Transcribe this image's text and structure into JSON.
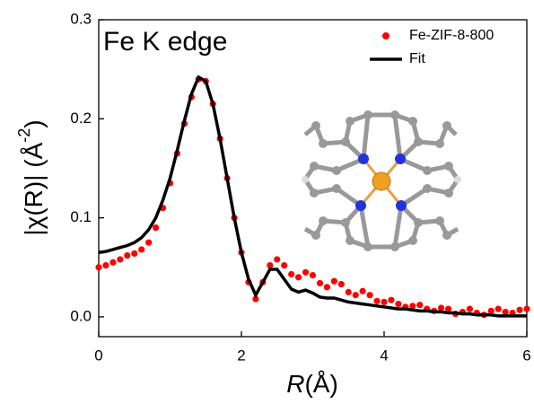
{
  "chart_data": {
    "type": "line",
    "annotation": "Fe K edge",
    "xlabel_italic": "R",
    "xlabel": "(Å)",
    "ylabel": "|χ(R)| (Å",
    "ylabel_sup": "-2",
    "ylabel_end": ")",
    "xlim": [
      0,
      6
    ],
    "ylim": [
      -0.02,
      0.3
    ],
    "xticks": [
      0,
      2,
      4,
      6
    ],
    "yticks": [
      {
        "value": 0,
        "label": "0.0"
      },
      0.1,
      0.2,
      0.3
    ],
    "legend": "upper right",
    "x": [
      0,
      0.1,
      0.2,
      0.3,
      0.4,
      0.5,
      0.6,
      0.7,
      0.8,
      0.9,
      1,
      1.1,
      1.2,
      1.3,
      1.4,
      1.5,
      1.6,
      1.7,
      1.8,
      1.9,
      2,
      2.1,
      2.2,
      2.3,
      2.4,
      2.5,
      2.6,
      2.7,
      2.8,
      2.9,
      3,
      3.1,
      3.2,
      3.3,
      3.4,
      3.5,
      3.6,
      3.7,
      3.8,
      3.9,
      4,
      4.1,
      4.2,
      4.3,
      4.4,
      4.5,
      4.6,
      4.7,
      4.8,
      4.9,
      5,
      5.1,
      5.2,
      5.3,
      5.4,
      5.5,
      5.6,
      5.7,
      5.8,
      5.9,
      6
    ],
    "series": [
      {
        "name": "Fe-ZIF-8-800",
        "type": "scatter",
        "color": "#ff0000",
        "values": [
          0.05,
          0.052,
          0.055,
          0.058,
          0.062,
          0.064,
          0.068,
          0.075,
          0.09,
          0.11,
          0.135,
          0.165,
          0.195,
          0.222,
          0.24,
          0.238,
          0.215,
          0.18,
          0.14,
          0.1,
          0.065,
          0.035,
          0.018,
          0.035,
          0.052,
          0.058,
          0.052,
          0.043,
          0.04,
          0.045,
          0.042,
          0.034,
          0.03,
          0.036,
          0.033,
          0.025,
          0.022,
          0.026,
          0.022,
          0.016,
          0.015,
          0.017,
          0.013,
          0.01,
          0.011,
          0.012,
          0.008,
          0.006,
          0.009,
          0.008,
          0.003,
          0.005,
          0.008,
          0.004,
          0.002,
          0.006,
          0.008,
          0.005,
          0.004,
          0.007,
          0.008
        ]
      },
      {
        "name": "Fit",
        "type": "line",
        "color": "#000000",
        "values": [
          0.065,
          0.066,
          0.068,
          0.07,
          0.072,
          0.075,
          0.08,
          0.088,
          0.1,
          0.118,
          0.14,
          0.168,
          0.198,
          0.225,
          0.242,
          0.238,
          0.215,
          0.18,
          0.14,
          0.1,
          0.065,
          0.038,
          0.022,
          0.035,
          0.048,
          0.048,
          0.038,
          0.028,
          0.025,
          0.027,
          0.024,
          0.02,
          0.019,
          0.019,
          0.017,
          0.015,
          0.014,
          0.013,
          0.012,
          0.011,
          0.01,
          0.009,
          0.008,
          0.008,
          0.007,
          0.006,
          0.006,
          0.005,
          0.005,
          0.004,
          0.004,
          0.003,
          0.003,
          0.002,
          0.002,
          0.002,
          0.001,
          0.001,
          0.001,
          0.001,
          0.001
        ]
      }
    ]
  }
}
